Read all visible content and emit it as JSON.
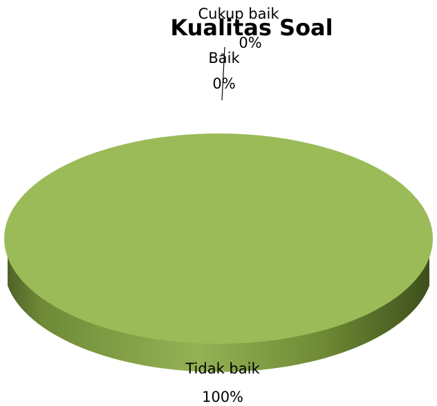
{
  "chart_data": {
    "type": "pie",
    "title": "Kualitas Soal",
    "categories": [
      "Baik",
      "Cukup baik",
      "Tidak baik"
    ],
    "values": [
      0,
      0,
      100
    ],
    "labels": [
      "0%",
      "0%",
      "100%"
    ],
    "colors": {
      "Tidak baik": "#9bbb59",
      "side_dark": "#4f6228",
      "side_light": "#76923c"
    },
    "style": "3d",
    "legend": "none"
  }
}
